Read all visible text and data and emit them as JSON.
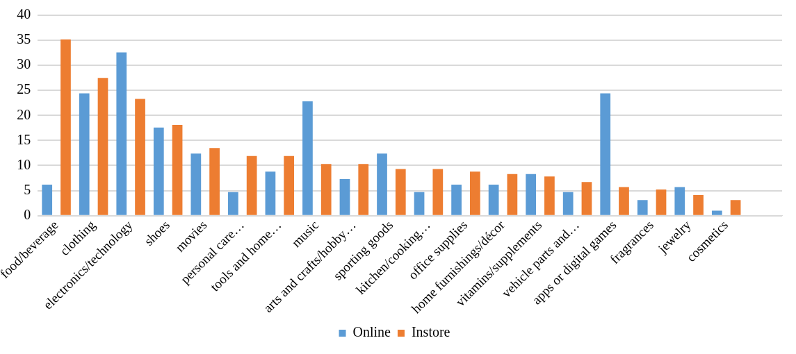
{
  "chart_data": {
    "type": "bar",
    "categories": [
      "food/beverage",
      "clothing",
      "electronics/technology",
      "shoes",
      "movies",
      "personal care…",
      "tools and home…",
      "music",
      "arts and crafts/hobby…",
      "sporting goods",
      "kitchen/cooking…",
      "office supplies",
      "home furnishings/décor",
      "vitamins/supplements",
      "vehicle parts and…",
      "apps or digital games",
      "fragrances",
      "jewelry",
      "cosmetics",
      null
    ],
    "series": [
      {
        "name": "Online",
        "color": "#5b9bd5",
        "values": [
          6.2,
          24.4,
          32.6,
          17.6,
          12.4,
          4.7,
          8.8,
          22.8,
          7.3,
          12.4,
          4.7,
          6.2,
          6.2,
          8.3,
          4.7,
          24.4,
          3.1,
          5.7,
          1.0,
          null
        ]
      },
      {
        "name": "Instore",
        "color": "#ed7d31",
        "values": [
          35.2,
          27.5,
          23.3,
          18.1,
          13.5,
          11.9,
          11.9,
          10.3,
          10.3,
          9.3,
          9.3,
          8.8,
          8.3,
          7.8,
          6.7,
          5.7,
          5.2,
          4.1,
          3.1,
          null
        ]
      }
    ],
    "ylim": [
      0,
      40
    ],
    "yticks": [
      0,
      5,
      10,
      15,
      20,
      25,
      30,
      35,
      40
    ],
    "grid": "y",
    "legend": "bottom"
  }
}
